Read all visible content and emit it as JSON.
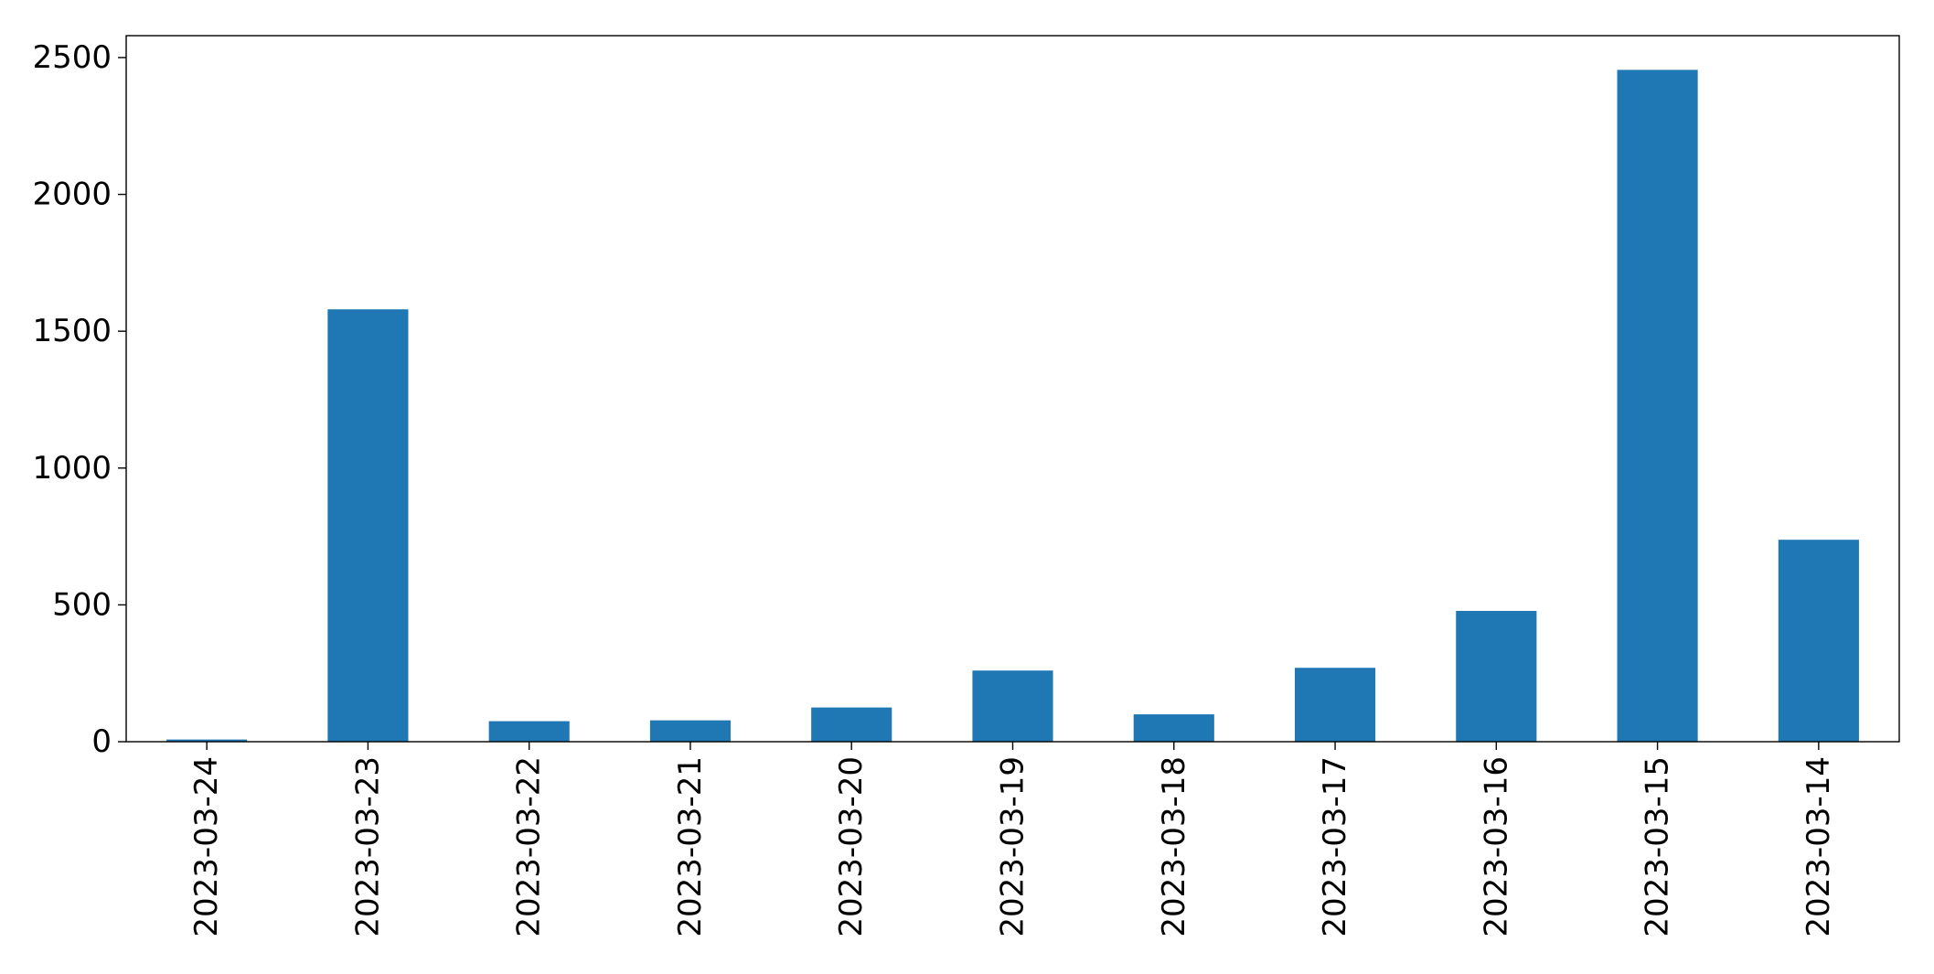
{
  "chart_data": {
    "type": "bar",
    "title": "",
    "xlabel": "",
    "ylabel": "",
    "categories": [
      "2023-03-24",
      "2023-03-23",
      "2023-03-22",
      "2023-03-21",
      "2023-03-20",
      "2023-03-19",
      "2023-03-18",
      "2023-03-17",
      "2023-03-16",
      "2023-03-15",
      "2023-03-14"
    ],
    "values": [
      8,
      1580,
      75,
      78,
      125,
      260,
      100,
      270,
      478,
      2455,
      738
    ],
    "yticks": [
      0,
      500,
      1000,
      1500,
      2000,
      2500
    ],
    "ylim": [
      0,
      2580
    ],
    "bar_color": "#1f77b4",
    "grid": false,
    "legend": "none"
  }
}
